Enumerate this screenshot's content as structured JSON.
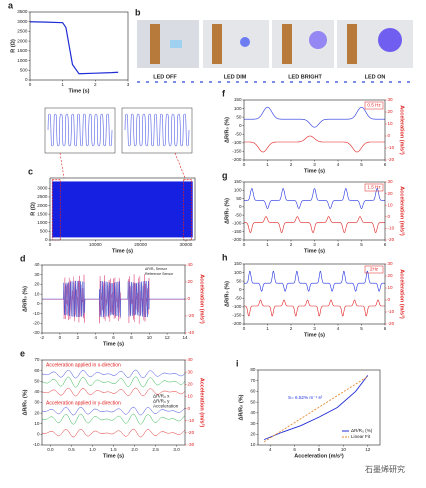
{
  "panels": {
    "a": {
      "label": "a",
      "type": "line",
      "xlabel": "Time (s)",
      "ylabel": "R (Ω)",
      "xlim": [
        0,
        3
      ],
      "xticks": [
        0,
        1,
        2,
        3
      ],
      "ylim": [
        0,
        3500
      ],
      "yticks": [
        0,
        500,
        1000,
        1500,
        2000,
        2500,
        3000,
        3500
      ],
      "series": [
        {
          "color": "#1f2bd6",
          "x": [
            0,
            0.5,
            1.0,
            1.1,
            1.3,
            1.5,
            2.0,
            2.5,
            2.7
          ],
          "values": [
            3000,
            2980,
            2950,
            2700,
            800,
            320,
            350,
            380,
            400
          ]
        }
      ]
    },
    "b": {
      "label": "b",
      "states": [
        "LED OFF",
        "LED DIM",
        "LED BRIGHT",
        "LED ON"
      ]
    },
    "c": {
      "label": "c",
      "xlabel": "Time (s)",
      "ylabel": "R (Ω)",
      "xlim": [
        0,
        32000
      ],
      "xticks": [
        0,
        10000,
        20000,
        30000
      ],
      "ylim": [
        0,
        3600
      ],
      "yticks": [
        0,
        500,
        1000,
        1500,
        2000,
        2500,
        3000
      ]
    },
    "d": {
      "label": "d",
      "xlabel": "Time (s)",
      "ylabel": "ΔR/R₀ (%)",
      "y2label": "Acceleration (m/s²)",
      "xlim": [
        -2,
        14
      ],
      "xticks": [
        -2,
        0,
        2,
        4,
        6,
        8,
        10,
        12,
        14
      ],
      "ylim": [
        -30,
        40
      ],
      "yticks": [
        -30,
        -20,
        -10,
        0,
        10,
        20,
        30,
        40
      ],
      "y2lim": [
        -40,
        40
      ],
      "y2ticks": [
        -40,
        -20,
        0,
        20,
        40
      ],
      "legend": [
        "ΔR/R₀ Sensor",
        "Reference Sensor"
      ]
    },
    "e": {
      "label": "e",
      "xlabel": "Time (s)",
      "ylabel": "ΔR/R₀ (%)",
      "y2label": "Acceleration (m/s²)",
      "xlim": [
        -0.2,
        3.2
      ],
      "xticks": [
        {
          "value": 0,
          "label": "0.0"
        },
        {
          "value": 0.5,
          "label": "0.5"
        },
        {
          "value": 1,
          "label": "1.0"
        },
        {
          "value": 1.5,
          "label": "1.5"
        },
        {
          "value": 2,
          "label": "2.0"
        },
        {
          "value": 2.5,
          "label": "2.5"
        },
        {
          "value": 3,
          "label": "3.0"
        }
      ],
      "ylim": [
        -10,
        70
      ],
      "yticks": [
        -10,
        0,
        10,
        20,
        30,
        40,
        50,
        60,
        70
      ],
      "y2lim": [
        -30,
        40
      ],
      "y2ticks": [
        -30,
        -20,
        -10,
        0,
        10,
        20,
        30,
        40
      ],
      "notes": [
        "Acceleration applied in x-direction",
        "Acceleration applied in y-direction"
      ],
      "legend": [
        "ΔR/R₀ x",
        "ΔR/R₀ y",
        "Acceleration"
      ]
    },
    "f": {
      "label": "f",
      "tag": "0.5 Hz",
      "xlabel": "Time (s)",
      "ylabel": "ΔR/R₀ (%)",
      "y2label": "Acceleration (m/s²)",
      "xlim": [
        0,
        6
      ],
      "xticks": [
        0,
        1,
        2,
        3,
        4,
        5,
        6
      ],
      "ylim": [
        -200,
        150
      ],
      "yticks": [
        -200,
        -150,
        -100,
        -50,
        0,
        50,
        100,
        150
      ],
      "y2lim": [
        -20,
        30
      ],
      "y2ticks": [
        -20,
        -10,
        0,
        10,
        20,
        30
      ]
    },
    "g": {
      "label": "g",
      "tag": "1.5 Hz",
      "xlabel": "Time (s)",
      "ylabel": "ΔR/R₀ (%)",
      "y2label": "Acceleration (m/s²)",
      "xlim": [
        0,
        6
      ],
      "xticks": [
        0,
        1,
        2,
        3,
        4,
        5,
        6
      ],
      "ylim": [
        -200,
        150
      ],
      "yticks": [
        -200,
        -150,
        -100,
        -50,
        0,
        50,
        100,
        150
      ],
      "y2lim": [
        -20,
        30
      ],
      "y2ticks": [
        -20,
        -10,
        0,
        10,
        20,
        30
      ]
    },
    "h": {
      "label": "h",
      "tag": "2Hz",
      "xlabel": "Time (s)",
      "ylabel": "ΔR/R₀ (%)",
      "y2label": "Acceleration (m/s²)",
      "xlim": [
        0,
        6
      ],
      "xticks": [
        0,
        1,
        2,
        3,
        4,
        5,
        6
      ],
      "ylim": [
        -200,
        150
      ],
      "yticks": [
        -200,
        -150,
        -100,
        -50,
        0,
        50,
        100,
        150
      ],
      "y2lim": [
        -20,
        30
      ],
      "y2ticks": [
        -20,
        -10,
        0,
        10,
        20,
        30
      ]
    },
    "i": {
      "label": "i",
      "type": "line",
      "xlabel": "Acceleration (m/s²)",
      "ylabel": "ΔR/R₀ (%)",
      "xlim": [
        3,
        13
      ],
      "xticks": [
        4,
        6,
        8,
        10,
        12
      ],
      "ylim": [
        10,
        80
      ],
      "yticks": [
        10,
        20,
        30,
        40,
        50,
        60,
        70,
        80
      ],
      "annotation": "S= 6.52% m⁻¹ s²",
      "series": [
        {
          "name": "ΔR/R₀ (%)",
          "color": "#1f2bd6",
          "x": [
            3.5,
            5,
            6.5,
            8,
            9.5,
            11,
            12
          ],
          "values": [
            15,
            22,
            28,
            36,
            45,
            60,
            75
          ]
        },
        {
          "name": "Linear Fit",
          "color": "#e8892c",
          "dashed": true,
          "x": [
            3.5,
            12
          ],
          "values": [
            13,
            74
          ]
        }
      ]
    }
  },
  "watermark": "石墨烯研究"
}
